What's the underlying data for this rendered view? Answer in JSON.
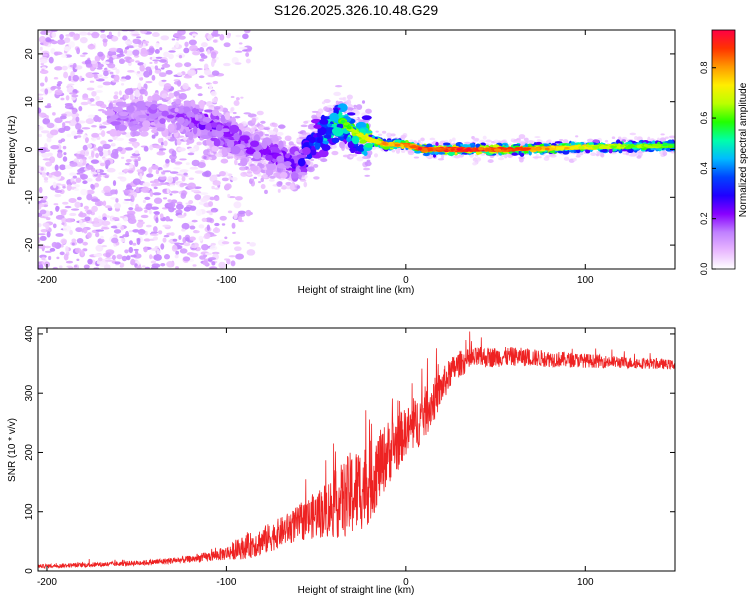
{
  "title": "S126.2025.326.10.48.G29",
  "chart_data": [
    {
      "type": "heatmap",
      "name": "spectrogram",
      "xlabel": "Height of straight line (km)",
      "ylabel": "Frequency (Hz)",
      "xlim": [
        -205,
        150
      ],
      "ylim": [
        -25,
        25
      ],
      "xticks": [
        -200,
        -100,
        0,
        100
      ],
      "xtick_labels": [
        "-200",
        "-100",
        "0",
        "100"
      ],
      "yticks": [
        -20,
        -10,
        0,
        10,
        20
      ],
      "ytick_labels": [
        "-20",
        "-10",
        "0",
        "10",
        "20"
      ],
      "colorbar": {
        "label": "Normalized spectral amplitude",
        "range": [
          0,
          0.95
        ],
        "ticks": [
          0.0,
          0.2,
          0.4,
          0.6,
          0.8
        ],
        "tick_labels": [
          "0.0",
          "0.2",
          "0.4",
          "0.6",
          "0.8"
        ],
        "colormap": [
          "#ffffff",
          "#e9b8ff",
          "#c080ff",
          "#8800ff",
          "#2000ff",
          "#0044ff",
          "#00bbff",
          "#00ffaa",
          "#22ff00",
          "#bbff00",
          "#ffee00",
          "#ff9900",
          "#ff3300",
          "#ff0044"
        ]
      },
      "ridge": {
        "x": [
          -130,
          -110,
          -90,
          -75,
          -60,
          -50,
          -44,
          -40,
          -35,
          -30,
          -20,
          -10,
          0,
          10,
          30,
          60,
          100,
          150
        ],
        "y": [
          7,
          5,
          1,
          -1,
          -3,
          2,
          4,
          5,
          6,
          4,
          2,
          1,
          1,
          0,
          0,
          0,
          0.5,
          0.8
        ],
        "amplitude": [
          0.18,
          0.25,
          0.22,
          0.22,
          0.25,
          0.45,
          0.55,
          0.6,
          0.6,
          0.65,
          0.75,
          0.8,
          0.82,
          0.9,
          0.92,
          0.88,
          0.72,
          0.6
        ]
      }
    },
    {
      "type": "line",
      "name": "snr",
      "xlabel": "Height of straight line (km)",
      "ylabel": "SNR (10 * v/v)",
      "xlim": [
        -205,
        150
      ],
      "ylim": [
        0,
        410
      ],
      "xticks": [
        -200,
        -100,
        0,
        100
      ],
      "xtick_labels": [
        "-200",
        "-100",
        "0",
        "100"
      ],
      "yticks": [
        0,
        100,
        200,
        300,
        400
      ],
      "ytick_labels": [
        "0",
        "100",
        "200",
        "300",
        "400"
      ],
      "color": "#ee2222",
      "series": [
        {
          "name": "SNR",
          "x": [
            -205,
            -180,
            -160,
            -140,
            -120,
            -110,
            -100,
            -90,
            -80,
            -70,
            -60,
            -50,
            -40,
            -30,
            -20,
            -15,
            -10,
            -5,
            0,
            5,
            10,
            15,
            20,
            25,
            30,
            40,
            60,
            80,
            100,
            120,
            150
          ],
          "y": [
            8,
            10,
            12,
            15,
            20,
            24,
            30,
            40,
            50,
            65,
            80,
            95,
            110,
            130,
            150,
            175,
            200,
            215,
            235,
            245,
            265,
            285,
            310,
            335,
            350,
            360,
            362,
            358,
            355,
            352,
            348
          ],
          "noise": [
            3,
            4,
            4,
            5,
            6,
            8,
            12,
            20,
            25,
            25,
            30,
            40,
            55,
            75,
            70,
            60,
            55,
            50,
            40,
            45,
            45,
            38,
            30,
            25,
            22,
            18,
            16,
            14,
            12,
            10,
            8
          ]
        }
      ]
    }
  ]
}
